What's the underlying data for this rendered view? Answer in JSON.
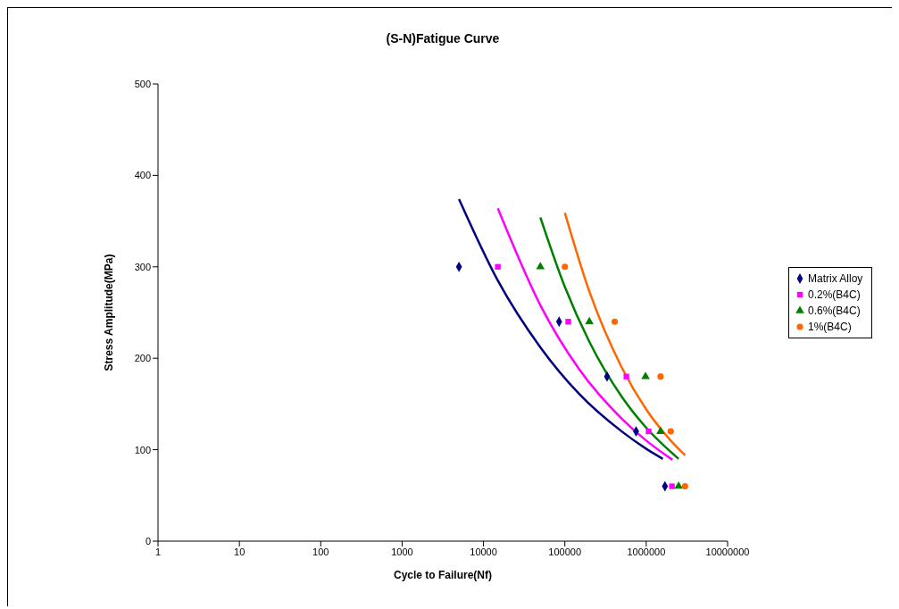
{
  "chart_data": {
    "type": "scatter",
    "title": "(S-N)Fatigue Curve",
    "xlabel": "Cycle to Failure(Nf)",
    "ylabel": "Stress Amplitude(MPa)",
    "log": "x",
    "xlim": [
      1,
      10000000
    ],
    "xticks": [
      1,
      10,
      100,
      1000,
      10000,
      100000,
      1000000,
      10000000
    ],
    "ylim": [
      0,
      500
    ],
    "yticks": [
      0,
      100,
      200,
      300,
      400,
      500
    ],
    "grid": false,
    "legend": "right",
    "series": [
      {
        "name": "Matrix Alloy",
        "marker": "diamond",
        "color": "#000080",
        "x": [
          5000,
          85000,
          330000,
          750000,
          1700000
        ],
        "values": [
          300,
          240,
          180,
          120,
          60
        ]
      },
      {
        "name": "0.2%(B4C)",
        "marker": "square",
        "color": "#ff00ff",
        "x": [
          15000,
          110000,
          570000,
          1070000,
          2070000
        ],
        "values": [
          300,
          240,
          180,
          120,
          60
        ]
      },
      {
        "name": "0.6%(B4C)",
        "marker": "triangle",
        "color": "#008000",
        "x": [
          50000,
          200000,
          980000,
          1500000,
          2500000
        ],
        "values": [
          300,
          240,
          180,
          120,
          60
        ]
      },
      {
        "name": "1%(B4C)",
        "marker": "circle",
        "color": "#ff6600",
        "x": [
          100000,
          410000,
          1500000,
          2000000,
          3000000
        ],
        "values": [
          300,
          240,
          180,
          120,
          60
        ]
      },
      {
        "type": "line",
        "marker": "none",
        "color": "#000080",
        "x": [
          5000,
          15000,
          50000,
          150000,
          500000,
          1000000,
          1600000
        ],
        "values": [
          374,
          285,
          212,
          161,
          120,
          101,
          90
        ]
      },
      {
        "type": "line",
        "marker": "none",
        "color": "#ff00ff",
        "x": [
          15000,
          50000,
          150000,
          500000,
          1000000,
          2100000
        ],
        "values": [
          364,
          258,
          188,
          134,
          110,
          89
        ]
      },
      {
        "type": "line",
        "marker": "none",
        "color": "#008000",
        "x": [
          50000,
          100000,
          200000,
          500000,
          1000000,
          2500000
        ],
        "values": [
          354,
          278,
          218,
          158,
          124,
          90
        ]
      },
      {
        "type": "line",
        "marker": "none",
        "color": "#ff6600",
        "x": [
          100000,
          200000,
          500000,
          1000000,
          2000000,
          3000000
        ],
        "values": [
          359,
          273,
          190,
          144,
          110,
          94
        ]
      }
    ]
  }
}
